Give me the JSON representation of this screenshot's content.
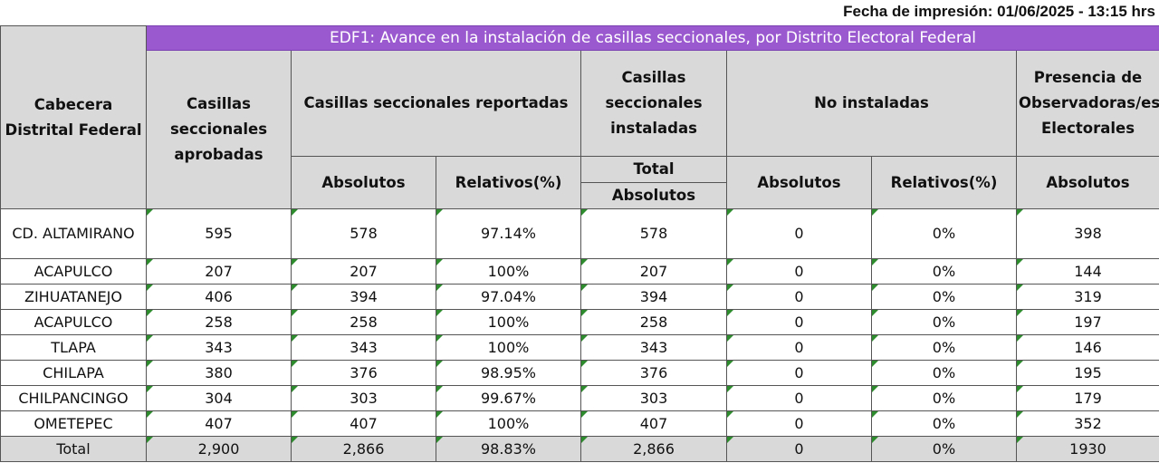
{
  "print_date": "Fecha de impresión: 01/06/2025 - 13:15 hrs",
  "title": "EDF1: Avance en la instalación de casillas seccionales, por Distrito Electoral Federal",
  "headers": {
    "cabecera": "Cabecera Distrital Federal",
    "aprobadas": "Casillas seccionales aprobadas",
    "reportadas": "Casillas seccionales reportadas",
    "instaladas": "Casillas seccionales instaladas",
    "no_instaladas": "No instaladas",
    "presencia": "Presencia de Observadoras/es Electorales",
    "absolutos": "Absolutos",
    "relativos": "Relativos(%)",
    "total": "Total"
  },
  "rows": [
    {
      "cabecera": "CD. ALTAMIRANO",
      "aprobadas": "595",
      "rep_abs": "578",
      "rep_rel": "97.14%",
      "inst_abs": "578",
      "noinst_abs": "0",
      "noinst_rel": "0%",
      "obs_abs": "398"
    },
    {
      "cabecera": "ACAPULCO",
      "aprobadas": "207",
      "rep_abs": "207",
      "rep_rel": "100%",
      "inst_abs": "207",
      "noinst_abs": "0",
      "noinst_rel": "0%",
      "obs_abs": "144"
    },
    {
      "cabecera": "ZIHUATANEJO",
      "aprobadas": "406",
      "rep_abs": "394",
      "rep_rel": "97.04%",
      "inst_abs": "394",
      "noinst_abs": "0",
      "noinst_rel": "0%",
      "obs_abs": "319"
    },
    {
      "cabecera": "ACAPULCO",
      "aprobadas": "258",
      "rep_abs": "258",
      "rep_rel": "100%",
      "inst_abs": "258",
      "noinst_abs": "0",
      "noinst_rel": "0%",
      "obs_abs": "197"
    },
    {
      "cabecera": "TLAPA",
      "aprobadas": "343",
      "rep_abs": "343",
      "rep_rel": "100%",
      "inst_abs": "343",
      "noinst_abs": "0",
      "noinst_rel": "0%",
      "obs_abs": "146"
    },
    {
      "cabecera": "CHILAPA",
      "aprobadas": "380",
      "rep_abs": "376",
      "rep_rel": "98.95%",
      "inst_abs": "376",
      "noinst_abs": "0",
      "noinst_rel": "0%",
      "obs_abs": "195"
    },
    {
      "cabecera": "CHILPANCINGO",
      "aprobadas": "304",
      "rep_abs": "303",
      "rep_rel": "99.67%",
      "inst_abs": "303",
      "noinst_abs": "0",
      "noinst_rel": "0%",
      "obs_abs": "179"
    },
    {
      "cabecera": "OMETEPEC",
      "aprobadas": "407",
      "rep_abs": "407",
      "rep_rel": "100%",
      "inst_abs": "407",
      "noinst_abs": "0",
      "noinst_rel": "0%",
      "obs_abs": "352"
    }
  ],
  "total_row": {
    "cabecera": "Total",
    "aprobadas": "2,900",
    "rep_abs": "2,866",
    "rep_rel": "98.83%",
    "inst_abs": "2,866",
    "noinst_abs": "0",
    "noinst_rel": "0%",
    "obs_abs": "1930"
  },
  "colors": {
    "title_bg": "#9b59d0",
    "header_bg": "#d9d9d9",
    "cell_marker": "#2e8b2e"
  }
}
